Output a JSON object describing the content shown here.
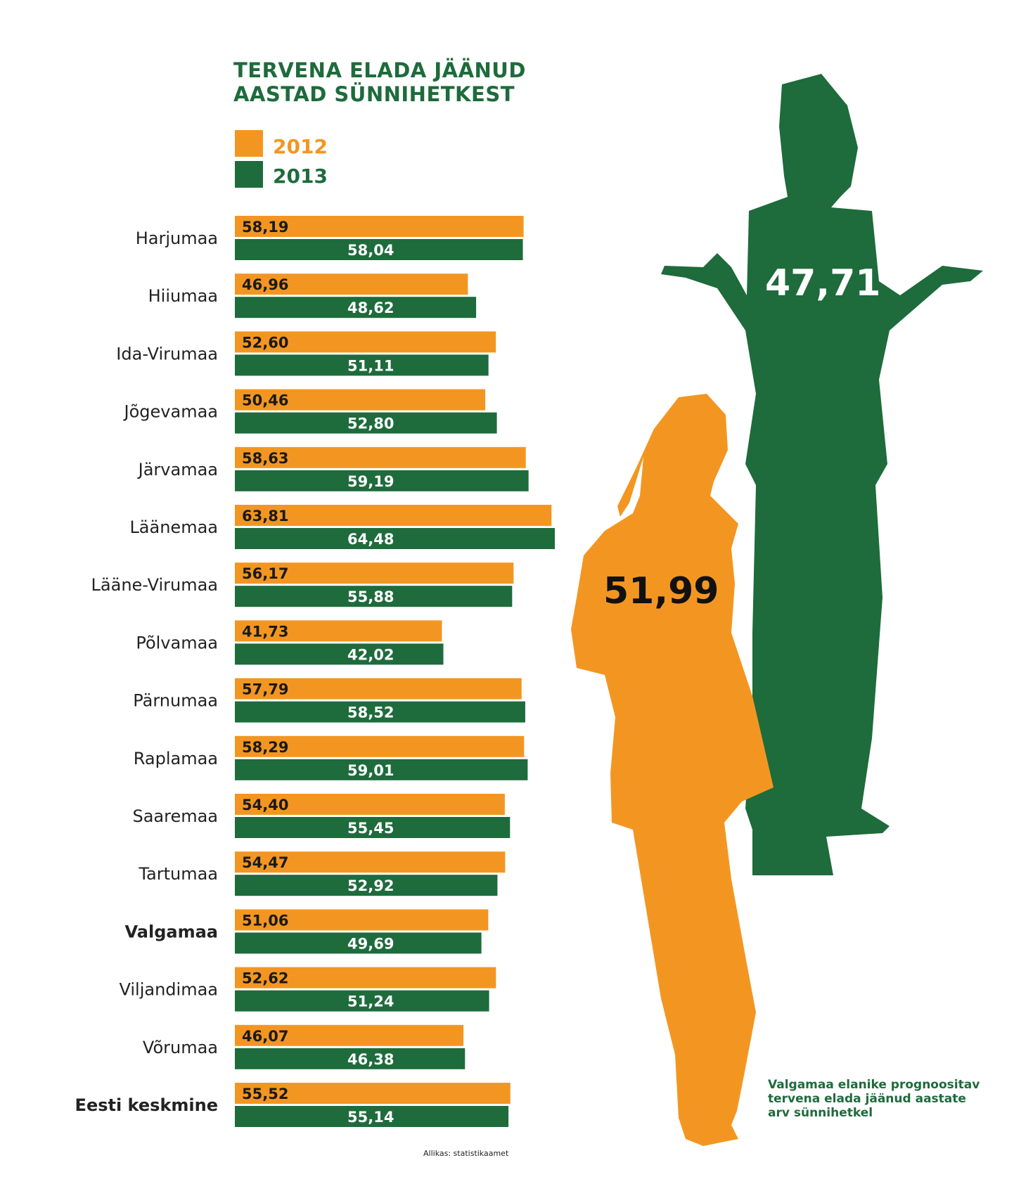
{
  "title_lines": [
    "TERVENA ELADA JÄÄNUD",
    "AASTAD SÜNNIHETKEST"
  ],
  "legend": [
    {
      "label": "2012",
      "color": "#f39621"
    },
    {
      "label": "2013",
      "color": "#1e6b3c"
    }
  ],
  "chart_data": {
    "type": "bar",
    "orientation": "horizontal",
    "categories": [
      "Harjumaa",
      "Hiiumaa",
      "Ida-Virumaa",
      "Jõgevamaa",
      "Järvamaa",
      "Läänemaa",
      "Lääne-Virumaa",
      "Põlvamaa",
      "Pärnumaa",
      "Raplamaa",
      "Saaremaa",
      "Tartumaa",
      "Valgamaa",
      "Viljandimaa",
      "Võrumaa",
      "Eesti keskmine"
    ],
    "highlight_category": "Valgamaa",
    "bold_category": "Eesti keskmine",
    "series": [
      {
        "name": "2012",
        "color": "#f39621",
        "values": [
          58.19,
          46.96,
          52.6,
          50.46,
          58.63,
          63.81,
          56.17,
          41.73,
          57.79,
          58.29,
          54.4,
          54.47,
          51.06,
          52.62,
          46.07,
          55.52
        ],
        "labels": [
          "58,19",
          "46,96",
          "52,60",
          "50,46",
          "58,63",
          "63,81",
          "56,17",
          "41,73",
          "57,79",
          "58,29",
          "54,40",
          "54,47",
          "51,06",
          "52,62",
          "46,07",
          "55,52"
        ]
      },
      {
        "name": "2013",
        "color": "#1e6b3c",
        "values": [
          58.04,
          48.62,
          51.11,
          52.8,
          59.19,
          64.48,
          55.88,
          42.02,
          58.52,
          59.01,
          55.45,
          52.92,
          49.69,
          51.24,
          46.38,
          55.14
        ],
        "labels": [
          "58,04",
          "48,62",
          "51,11",
          "52,80",
          "59,19",
          "64,48",
          "55,88",
          "42,02",
          "58,52",
          "59,01",
          "55,45",
          "52,92",
          "49,69",
          "51,24",
          "46,38",
          "55,14"
        ]
      }
    ],
    "xlim": [
      0,
      64.48
    ],
    "grid": false,
    "legend_position": "top-left"
  },
  "figures": [
    {
      "role": "female",
      "value": "51,99",
      "color": "#f39621",
      "text_color": "#111111"
    },
    {
      "role": "male",
      "value": "47,71",
      "color": "#1e6b3c",
      "text_color": "#ffffff"
    }
  ],
  "note_lines": [
    "Valgamaa elanike prognoositav",
    "tervena elada jäänud aastate",
    "arv sünnihetkel"
  ],
  "source": "Allikas: statistikaamet"
}
